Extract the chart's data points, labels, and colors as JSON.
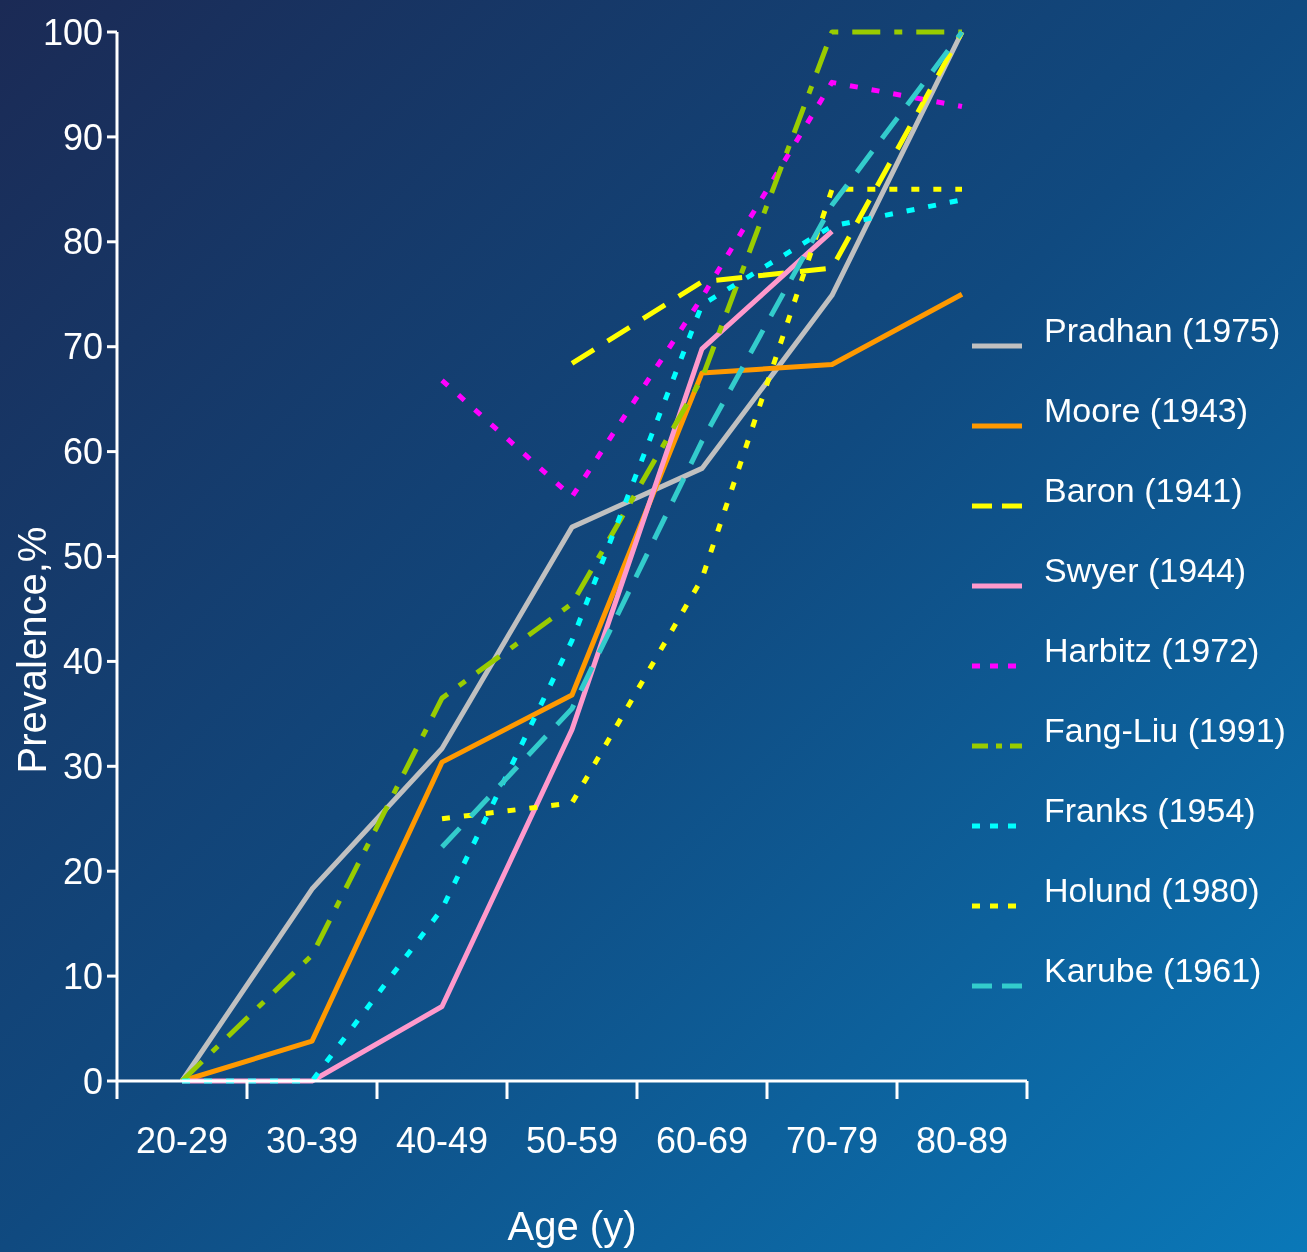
{
  "chart_data": {
    "type": "line",
    "xlabel": "Age (y)",
    "ylabel": "Prevalence,%",
    "categories": [
      "20-29",
      "30-39",
      "40-49",
      "50-59",
      "60-69",
      "70-79",
      "80-89"
    ],
    "ylim": [
      0,
      100
    ],
    "yticks": [
      0,
      10,
      20,
      30,
      40,
      50,
      60,
      70,
      80,
      90,
      100
    ],
    "grid": false,
    "legend": "right",
    "marker": "none",
    "series": [
      {
        "name": "Pradhan (1975)",
        "color": "#c0c0c0",
        "line_style": "solid",
        "values": [
          0,
          18.3,
          31.7,
          52.8,
          58.4,
          74.9,
          100
        ]
      },
      {
        "name": "Moore (1943)",
        "color": "#ff9900",
        "line_style": "solid",
        "values": [
          0,
          3.8,
          30.4,
          36.8,
          67.5,
          68.3,
          75
        ]
      },
      {
        "name": "Baron (1941)",
        "color": "#ffff00",
        "line_style": "dashed",
        "values": [
          null,
          null,
          null,
          68.4,
          76.2,
          77.5,
          100
        ]
      },
      {
        "name": "Swyer (1944)",
        "color": "#ff99cc",
        "line_style": "solid",
        "values": [
          0,
          0,
          7.1,
          33.5,
          69.8,
          81,
          null
        ]
      },
      {
        "name": "Harbitz (1972)",
        "color": "#ff00ff",
        "line_style": "dotted",
        "values": [
          null,
          null,
          66.8,
          55.7,
          74.7,
          95.2,
          92.9
        ]
      },
      {
        "name": "Fang-Liu (1991)",
        "color": "#99cc00",
        "line_style": "dashdot",
        "values": [
          0,
          12,
          36.5,
          45.5,
          67,
          100,
          100
        ]
      },
      {
        "name": "Franks (1954)",
        "color": "#00ffff",
        "line_style": "dotted",
        "values": [
          0,
          0,
          16.4,
          42,
          74,
          81.5,
          84
        ]
      },
      {
        "name": "Holund (1980)",
        "color": "#ffff00",
        "line_style": "dotted",
        "values": [
          null,
          null,
          25,
          26.5,
          47.9,
          85,
          85
        ]
      },
      {
        "name": "Karube (1961)",
        "color": "#33cccc",
        "line_style": "dashed",
        "values": [
          null,
          null,
          22.3,
          35.5,
          61,
          83.5,
          100
        ]
      }
    ]
  }
}
